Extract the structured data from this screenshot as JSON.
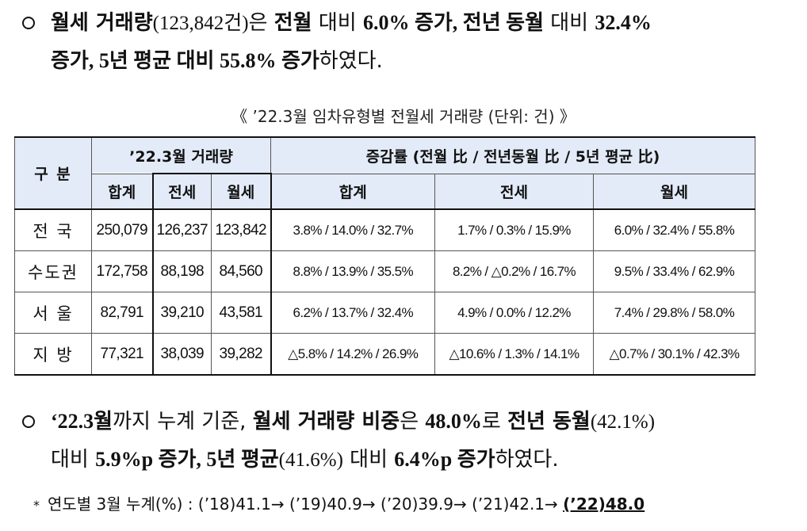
{
  "para1": {
    "line1": [
      "월세 거래량",
      "(123,842건)",
      "은 ",
      "전월",
      " 대비 ",
      "6.0% 증가, 전년 동월",
      " 대비 ",
      "32.4%"
    ],
    "line2": [
      "증가, 5년 평균 대비 55.8% 증가",
      "하였다."
    ]
  },
  "caption": "《 ’22.3월 임차유형별 전월세 거래량 (단위: 건) 》",
  "table": {
    "header": {
      "category": "구 분",
      "volume_group": "’22.3월 거래량",
      "change_group": "증감률 (전월 比 / 전년동월 比 / 5년 평균 比)",
      "total": "합계",
      "jeonse": "전세",
      "wolse": "월세",
      "change_total": "합계",
      "change_jeonse": "전세",
      "change_wolse": "월세"
    },
    "rows": [
      {
        "region": "전 국",
        "total": "250,079",
        "jeonse": "126,237",
        "wolse": "123,842",
        "chg_total": "3.8% /   14.0% / 32.7%",
        "chg_jeonse": "1.7% / 0.3% / 15.9%",
        "chg_wolse": "6.0% / 32.4% / 55.8%"
      },
      {
        "region": "수도권",
        "total": "172,758",
        "jeonse": "88,198",
        "wolse": "84,560",
        "chg_total": "8.8% / 13.9% / 35.5%",
        "chg_jeonse": "8.2% /  △0.2% / 16.7%",
        "chg_wolse": "9.5% / 33.4% / 62.9%"
      },
      {
        "region": "서 울",
        "total": "82,791",
        "jeonse": "39,210",
        "wolse": "43,581",
        "chg_total": "6.2% / 13.7% / 32.4%",
        "chg_jeonse": "4.9% / 0.0% / 12.2%",
        "chg_wolse": "7.4% / 29.8% / 58.0%"
      },
      {
        "region": "지 방",
        "total": "77,321",
        "jeonse": "38,039",
        "wolse": "39,282",
        "chg_total": "△5.8% /   14.2% / 26.9%",
        "chg_jeonse": "△10.6% / 1.3% / 14.1%",
        "chg_wolse": "△0.7% / 30.1% / 42.3%"
      }
    ]
  },
  "para2": {
    "line1": [
      "‘22.3월",
      "까지 누계 기준, ",
      "월세 거래량 비중",
      "은 ",
      "48.0%",
      "로 ",
      "전년 동월",
      "(42.1%)"
    ],
    "line2": [
      "대비 ",
      "5.9%p 증가, 5년 평균",
      "(41.6%)",
      " 대비 ",
      "6.4%p 증가",
      "하였다."
    ]
  },
  "footnote": {
    "star": "*",
    "text": "연도별 3월 누계(%) : (’18)41.1→ (’19)40.9→ (’20)39.9→ (’21)42.1→ ",
    "last": "(’22)48.0"
  }
}
